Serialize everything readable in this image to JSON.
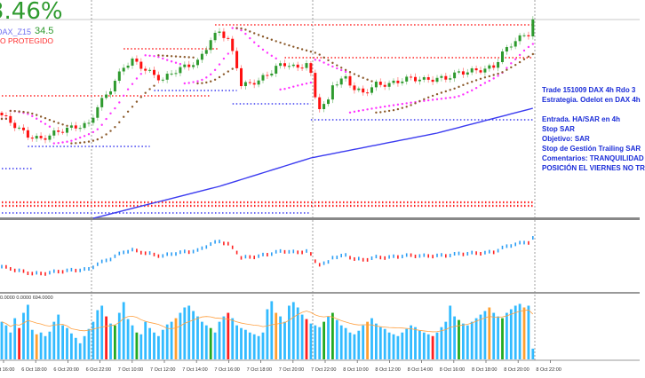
{
  "header": {
    "percent": "3.46%",
    "symbol": "DAX_Z15",
    "symbol_value": "34.5",
    "status": "O PROTEGIDO"
  },
  "notes": [
    "Trade 151009 DAX 4h Rdo 3",
    "Estrategia. Odelot en DAX 4h",
    "",
    "Entrada. HA/SAR en 4h",
    "Stop SAR",
    "Objetivo: SAR",
    "Stop de Gestión Trailing SAR",
    "Comentarios: TRANQUILIDAD",
    "POSICIÓN EL VIERNES NO TR"
  ],
  "volume_header": "0.0000 0.0000 694.0000",
  "colors": {
    "bull": "#2e9a2e",
    "bear": "#ff1010",
    "sar_fast": "#ff33ff",
    "sar_slow": "#8b5a2b",
    "ma": "#3b3bf0",
    "ha_up": "#2a9df4",
    "ha_down": "#ff2020",
    "vol": "#33bbff",
    "vol_orange": "#ffa030",
    "vol_red": "#ff2020",
    "vol_green": "#22aa22",
    "vol_ma": "#ffa040"
  },
  "chart_data": {
    "type": "candlestick",
    "x_ticks": [
      "6 Oct 16:00",
      "6 Oct 18:00",
      "6 Oct 20:00",
      "6 Oct 22:00",
      "7 Oct 10:00",
      "7 Oct 12:00",
      "7 Oct 14:00",
      "7 Oct 16:00",
      "7 Oct 18:00",
      "7 Oct 20:00",
      "7 Oct 22:00",
      "8 Oct 10:00",
      "8 Oct 12:00",
      "8 Oct 14:00",
      "8 Oct 16:00",
      "8 Oct 18:00",
      "8 Oct 20:00",
      "8 Oct 22:00"
    ],
    "candle_count": 123,
    "close_anchors": [
      [
        0,
        120
      ],
      [
        6,
        97
      ],
      [
        9,
        93
      ],
      [
        12,
        100
      ],
      [
        15,
        105
      ],
      [
        20,
        110
      ],
      [
        22,
        130
      ],
      [
        25,
        150
      ],
      [
        28,
        175
      ],
      [
        30,
        182
      ],
      [
        32,
        175
      ],
      [
        35,
        165
      ],
      [
        37,
        160
      ],
      [
        39,
        168
      ],
      [
        42,
        175
      ],
      [
        45,
        180
      ],
      [
        48,
        205
      ],
      [
        50,
        215
      ],
      [
        52,
        205
      ],
      [
        54,
        175
      ],
      [
        55,
        155
      ],
      [
        57,
        155
      ],
      [
        59,
        160
      ],
      [
        61,
        165
      ],
      [
        63,
        175
      ],
      [
        66,
        178
      ],
      [
        68,
        172
      ],
      [
        70,
        180
      ],
      [
        71,
        165
      ],
      [
        72,
        140
      ],
      [
        73,
        130
      ],
      [
        75,
        135
      ],
      [
        76,
        155
      ],
      [
        79,
        162
      ],
      [
        81,
        150
      ],
      [
        83,
        145
      ],
      [
        86,
        155
      ],
      [
        89,
        155
      ],
      [
        92,
        160
      ],
      [
        94,
        162
      ],
      [
        97,
        160
      ],
      [
        102,
        162
      ],
      [
        105,
        168
      ],
      [
        108,
        170
      ],
      [
        111,
        172
      ],
      [
        113,
        175
      ],
      [
        115,
        190
      ],
      [
        118,
        205
      ],
      [
        121,
        212
      ],
      [
        122,
        228
      ]
    ],
    "ma_anchors": [
      [
        21,
        4
      ],
      [
        50,
        40
      ],
      [
        71,
        72
      ],
      [
        100,
        100
      ],
      [
        122,
        128
      ]
    ],
    "levels": [
      {
        "kind": "resistance",
        "from": 0,
        "to": 48,
        "value": 142
      },
      {
        "kind": "resistance",
        "from": 28,
        "to": 50,
        "value": 195
      },
      {
        "kind": "resistance",
        "from": 49,
        "to": 122,
        "value": 222
      },
      {
        "kind": "resistance",
        "from": 65,
        "to": 122,
        "value": 185
      },
      {
        "kind": "stop",
        "from": 0,
        "to": 122,
        "value": 22
      },
      {
        "kind": "stop",
        "from": 0,
        "to": 122,
        "value": 18
      },
      {
        "kind": "support",
        "from": 6,
        "to": 34,
        "value": 85
      },
      {
        "kind": "support",
        "from": 35,
        "to": 54,
        "value": 148
      },
      {
        "kind": "support",
        "from": 53,
        "to": 71,
        "value": 133
      },
      {
        "kind": "support",
        "from": 0,
        "to": 7,
        "value": 60
      },
      {
        "kind": "support",
        "from": 0,
        "to": 71,
        "value": 10
      },
      {
        "kind": "support",
        "from": 71,
        "to": 122,
        "value": 115
      }
    ],
    "volumes": [
      420,
      380,
      300,
      460,
      350,
      520,
      610,
      330,
      280,
      300,
      260,
      310,
      420,
      500,
      380,
      350,
      290,
      240,
      180,
      260,
      340,
      420,
      550,
      600,
      480,
      400,
      380,
      520,
      640,
      450,
      380,
      300,
      280,
      420,
      350,
      300,
      260,
      330,
      390,
      420,
      460,
      520,
      580,
      600,
      540,
      480,
      420,
      380,
      350,
      300,
      420,
      480,
      520,
      460,
      380,
      350,
      330,
      300,
      280,
      260,
      300,
      560,
      650,
      520,
      480,
      420,
      600,
      640,
      580,
      500,
      450,
      400,
      380,
      360,
      420,
      480,
      520,
      440,
      380,
      350,
      300,
      280,
      320,
      380,
      420,
      460,
      400,
      360,
      340,
      300,
      280,
      260,
      300,
      340,
      380,
      360,
      320,
      300,
      280,
      260,
      300,
      360,
      420,
      600,
      480,
      440,
      400,
      380,
      420,
      460,
      500,
      540,
      580,
      520,
      480,
      460,
      520,
      560,
      600,
      620,
      580,
      600,
      120
    ],
    "volume_max": 694,
    "volume_color_overrides": {
      "4": "r",
      "8": "o",
      "24": "r",
      "26": "g",
      "31": "g",
      "40": "o",
      "48": "g",
      "52": "r",
      "63": "o",
      "70": "r",
      "74": "g",
      "76": "g",
      "84": "o",
      "99": "r",
      "105": "g",
      "112": "o",
      "115": "g",
      "120": "o"
    }
  }
}
